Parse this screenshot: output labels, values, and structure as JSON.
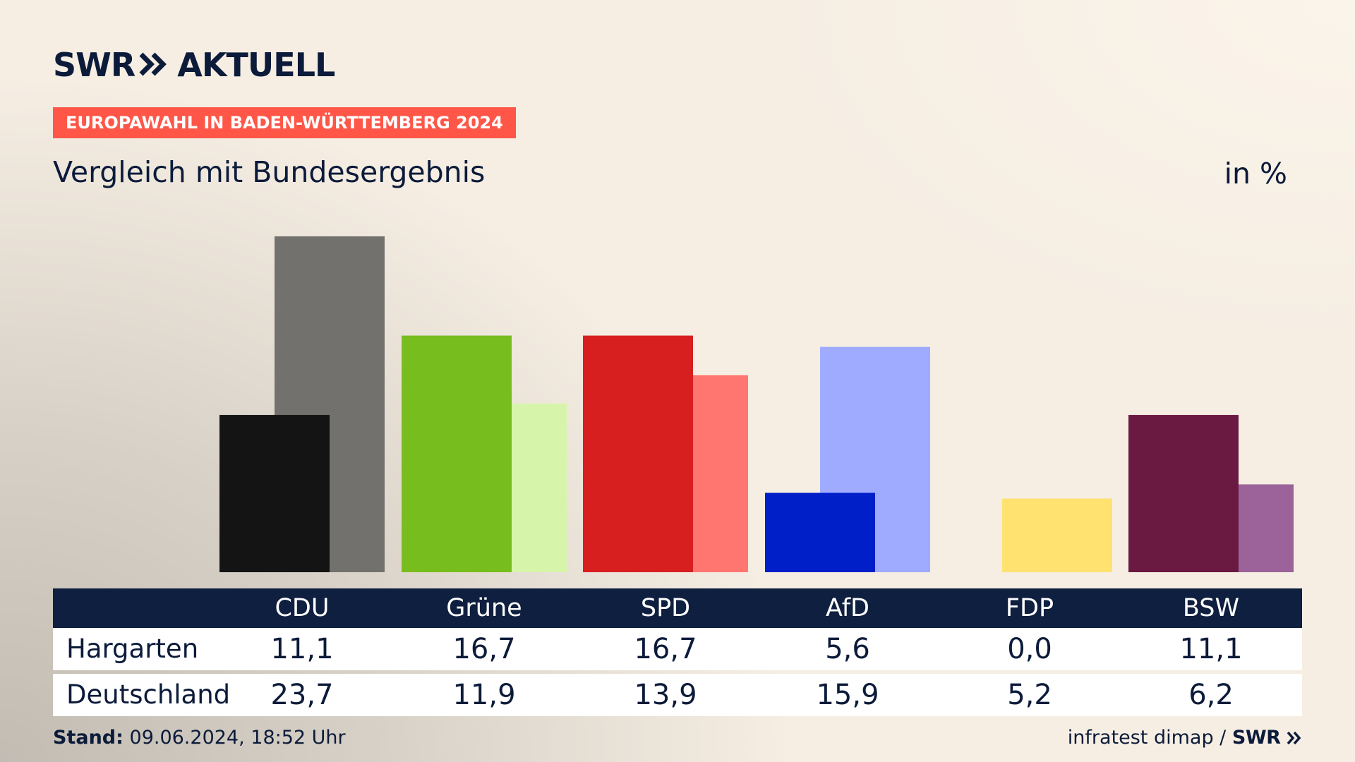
{
  "header": {
    "brand_left": "SWR",
    "brand_right": "AKTUELL",
    "tag": "EUROPAWAHL IN BADEN-WÜRTTEMBERG 2024",
    "subtitle": "Vergleich mit Bundesergebnis",
    "unit": "in %"
  },
  "chart_data": {
    "type": "bar",
    "categories": [
      "CDU",
      "Grüne",
      "SPD",
      "AfD",
      "FDP",
      "BSW"
    ],
    "series": [
      {
        "name": "Hargarten",
        "values": [
          11.1,
          16.7,
          16.7,
          5.6,
          0.0,
          11.1
        ]
      },
      {
        "name": "Deutschland",
        "values": [
          23.7,
          11.9,
          13.9,
          15.9,
          5.2,
          6.2
        ]
      }
    ],
    "labels_local": [
      "11,1",
      "16,7",
      "16,7",
      "5,6",
      "0,0",
      "11,1"
    ],
    "labels_national": [
      "23,7",
      "11,9",
      "13,9",
      "15,9",
      "5,2",
      "6,2"
    ],
    "colors_local": [
      "#141414",
      "#78bd1e",
      "#d81f20",
      "#001fc9",
      "#ffe270",
      "#6a1940"
    ],
    "colors_national": [
      "#73716e",
      "#d7f5aa",
      "#ff7671",
      "#9eabff",
      "#ffe270",
      "#9b6399"
    ],
    "ylim": [
      0,
      25
    ],
    "grid": false
  },
  "table": {
    "row_labels": [
      "Hargarten",
      "Deutschland"
    ]
  },
  "footer": {
    "stand_label": "Stand:",
    "stand_value": "09.06.2024, 18:52 Uhr",
    "source": "infratest dimap /",
    "source_brand": "SWR"
  },
  "icons": {
    "chevron": "double-chevron-right-icon"
  }
}
